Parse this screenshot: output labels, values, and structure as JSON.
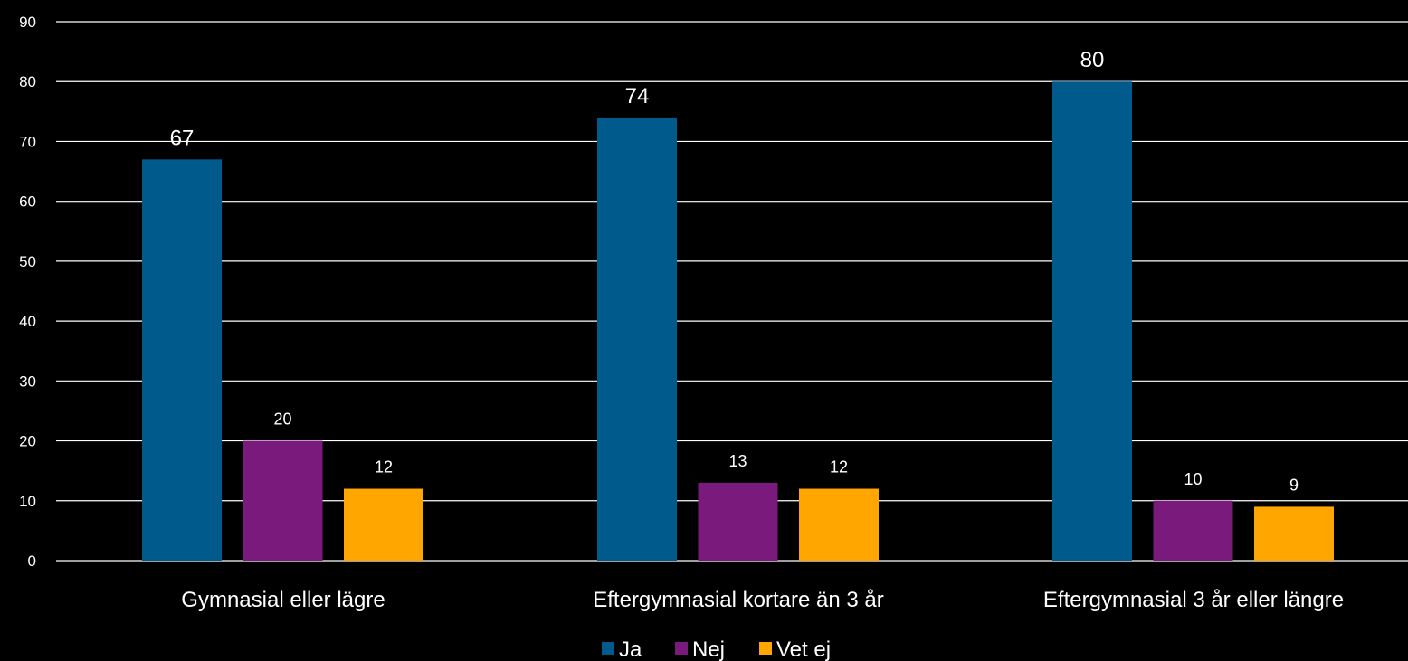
{
  "chart_data": {
    "type": "bar",
    "title": "",
    "xlabel": "",
    "ylabel": "",
    "ylim": [
      0,
      90
    ],
    "yticks": [
      0,
      10,
      20,
      30,
      40,
      50,
      60,
      70,
      80,
      90
    ],
    "grid": true,
    "legend_position": "bottom-center",
    "categories": [
      "Gymnasial eller lägre",
      "Eftergymnasial kortare än 3 år",
      "Eftergymnasial 3 år eller längre"
    ],
    "series": [
      {
        "name": "Ja",
        "color": "#005a8c",
        "values": [
          67,
          74,
          80
        ]
      },
      {
        "name": "Nej",
        "color": "#7b1a7d",
        "values": [
          20,
          13,
          10
        ]
      },
      {
        "name": "Vet ej",
        "color": "#ffa600",
        "values": [
          12,
          12,
          9
        ]
      }
    ],
    "colors": {
      "background": "#000000",
      "gridline": "#ffffff",
      "text": "#ffffff"
    }
  }
}
